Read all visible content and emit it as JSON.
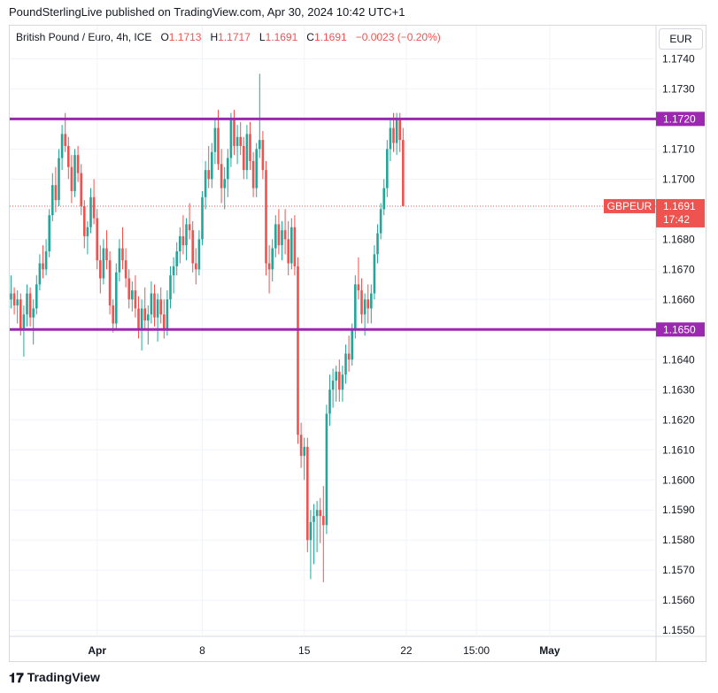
{
  "publisher": "PoundSterlingLive published on TradingView.com, Apr 30, 2024 10:42 UTC+1",
  "legend": {
    "symbol": "British Pound / Euro, 4h, ICE",
    "o_label": "O",
    "o_value": "1.1713",
    "h_label": "H",
    "h_value": "1.1717",
    "l_label": "L",
    "l_value": "1.1691",
    "c_label": "C",
    "c_value": "1.1691",
    "change": "−0.0023 (−0.20%)"
  },
  "currency_button": "EUR",
  "footer": {
    "brand": "TradingView",
    "logo_icon": "tradingview-logo-icon"
  },
  "colors": {
    "up": "#26a69a",
    "down": "#ef5350",
    "level_line": "#9c27b0",
    "price_tag": "#ef5350"
  },
  "chart_data": {
    "type": "candlestick",
    "title": "British Pound / Euro, 4h, ICE",
    "ylim": [
      1.1548,
      1.1751
    ],
    "y_ticks": [
      "1.1740",
      "1.1730",
      "1.1720",
      "1.1710",
      "1.1700",
      "1.1690",
      "1.1680",
      "1.1670",
      "1.1660",
      "1.1650",
      "1.1640",
      "1.1630",
      "1.1620",
      "1.1610",
      "1.1600",
      "1.1590",
      "1.1580",
      "1.1570",
      "1.1560",
      "1.1550"
    ],
    "x_labels": [
      {
        "label": "Apr",
        "bold": true,
        "index": 27
      },
      {
        "label": "8",
        "bold": false,
        "index": 60
      },
      {
        "label": "15",
        "bold": false,
        "index": 92
      },
      {
        "label": "22",
        "bold": false,
        "index": 124
      },
      {
        "label": "15:00",
        "bold": false,
        "index": 146
      },
      {
        "label": "May",
        "bold": true,
        "index": 169
      }
    ],
    "horizontal_levels": [
      {
        "value": 1.172,
        "label": "1.1720"
      },
      {
        "value": 1.165,
        "label": "1.1650"
      }
    ],
    "last_price": {
      "value": 1.1691,
      "symbol": "GBPEUR",
      "label": "1.1691",
      "countdown": "17:42"
    },
    "ohlc": [
      [
        1.166,
        1.1668,
        1.1657,
        1.1662
      ],
      [
        1.1662,
        1.1664,
        1.1655,
        1.1658
      ],
      [
        1.1658,
        1.1663,
        1.1652,
        1.166
      ],
      [
        1.166,
        1.1662,
        1.1648,
        1.165
      ],
      [
        1.165,
        1.1658,
        1.1641,
        1.1655
      ],
      [
        1.1655,
        1.1665,
        1.1651,
        1.1662
      ],
      [
        1.1662,
        1.1664,
        1.1651,
        1.1654
      ],
      [
        1.1654,
        1.166,
        1.1645,
        1.1657
      ],
      [
        1.1657,
        1.1668,
        1.1655,
        1.1665
      ],
      [
        1.1665,
        1.1675,
        1.1663,
        1.1672
      ],
      [
        1.1672,
        1.1678,
        1.1667,
        1.167
      ],
      [
        1.167,
        1.168,
        1.1668,
        1.1676
      ],
      [
        1.1676,
        1.169,
        1.1674,
        1.1688
      ],
      [
        1.1688,
        1.1702,
        1.1686,
        1.1698
      ],
      [
        1.1698,
        1.1704,
        1.1689,
        1.1693
      ],
      [
        1.1693,
        1.171,
        1.1691,
        1.1707
      ],
      [
        1.1707,
        1.1718,
        1.1703,
        1.1715
      ],
      [
        1.1715,
        1.1722,
        1.1709,
        1.1711
      ],
      [
        1.1711,
        1.1714,
        1.17,
        1.1704
      ],
      [
        1.1704,
        1.1708,
        1.1692,
        1.1696
      ],
      [
        1.1696,
        1.171,
        1.1694,
        1.1708
      ],
      [
        1.1708,
        1.1711,
        1.1699,
        1.1702
      ],
      [
        1.1702,
        1.1705,
        1.1688,
        1.1691
      ],
      [
        1.1691,
        1.1693,
        1.1677,
        1.1681
      ],
      [
        1.1681,
        1.1686,
        1.1675,
        1.1684
      ],
      [
        1.1684,
        1.1697,
        1.1682,
        1.1694
      ],
      [
        1.1694,
        1.17,
        1.1685,
        1.1687
      ],
      [
        1.1687,
        1.169,
        1.167,
        1.1673
      ],
      [
        1.1673,
        1.1678,
        1.1662,
        1.1667
      ],
      [
        1.1667,
        1.168,
        1.1665,
        1.1677
      ],
      [
        1.1677,
        1.1683,
        1.167,
        1.1673
      ],
      [
        1.1673,
        1.1676,
        1.1655,
        1.1658
      ],
      [
        1.1658,
        1.166,
        1.1649,
        1.1652
      ],
      [
        1.1652,
        1.1672,
        1.165,
        1.1669
      ],
      [
        1.1669,
        1.168,
        1.1666,
        1.1677
      ],
      [
        1.1677,
        1.1684,
        1.167,
        1.1673
      ],
      [
        1.1673,
        1.1677,
        1.1664,
        1.1667
      ],
      [
        1.1667,
        1.167,
        1.1657,
        1.166
      ],
      [
        1.166,
        1.1666,
        1.1656,
        1.1663
      ],
      [
        1.1663,
        1.1668,
        1.1654,
        1.1657
      ],
      [
        1.1657,
        1.1661,
        1.1647,
        1.165
      ],
      [
        1.165,
        1.166,
        1.1643,
        1.1657
      ],
      [
        1.1657,
        1.1664,
        1.165,
        1.1653
      ],
      [
        1.1653,
        1.1658,
        1.1645,
        1.1655
      ],
      [
        1.1655,
        1.1666,
        1.1652,
        1.1662
      ],
      [
        1.1662,
        1.1665,
        1.1651,
        1.1654
      ],
      [
        1.1654,
        1.1662,
        1.1646,
        1.166
      ],
      [
        1.166,
        1.1664,
        1.1652,
        1.1655
      ],
      [
        1.1655,
        1.166,
        1.1647,
        1.165
      ],
      [
        1.165,
        1.1663,
        1.1648,
        1.166
      ],
      [
        1.166,
        1.1671,
        1.1657,
        1.1668
      ],
      [
        1.1668,
        1.1674,
        1.1662,
        1.1671
      ],
      [
        1.1671,
        1.1679,
        1.1668,
        1.1676
      ],
      [
        1.1676,
        1.1684,
        1.1672,
        1.1681
      ],
      [
        1.1681,
        1.1688,
        1.1675,
        1.1678
      ],
      [
        1.1678,
        1.1687,
        1.1673,
        1.1685
      ],
      [
        1.1685,
        1.1692,
        1.168,
        1.1683
      ],
      [
        1.1683,
        1.1686,
        1.1669,
        1.1672
      ],
      [
        1.1672,
        1.1677,
        1.1665,
        1.167
      ],
      [
        1.167,
        1.1683,
        1.1668,
        1.168
      ],
      [
        1.168,
        1.1696,
        1.1678,
        1.1694
      ],
      [
        1.1694,
        1.1706,
        1.169,
        1.1703
      ],
      [
        1.1703,
        1.1711,
        1.1697,
        1.17
      ],
      [
        1.17,
        1.1712,
        1.1697,
        1.1709
      ],
      [
        1.1709,
        1.172,
        1.1705,
        1.1717
      ],
      [
        1.1717,
        1.1723,
        1.1703,
        1.1705
      ],
      [
        1.1705,
        1.171,
        1.1692,
        1.1697
      ],
      [
        1.1697,
        1.1704,
        1.169,
        1.17
      ],
      [
        1.17,
        1.171,
        1.1694,
        1.1707
      ],
      [
        1.1707,
        1.1722,
        1.1704,
        1.172
      ],
      [
        1.172,
        1.1723,
        1.1708,
        1.1711
      ],
      [
        1.1711,
        1.1718,
        1.1705,
        1.1714
      ],
      [
        1.1714,
        1.1719,
        1.1708,
        1.1711
      ],
      [
        1.1711,
        1.1714,
        1.17,
        1.1703
      ],
      [
        1.1703,
        1.1718,
        1.17,
        1.1715
      ],
      [
        1.1715,
        1.1719,
        1.1703,
        1.1706
      ],
      [
        1.1706,
        1.1709,
        1.1694,
        1.1697
      ],
      [
        1.1697,
        1.1712,
        1.1694,
        1.171
      ],
      [
        1.171,
        1.1735,
        1.1707,
        1.1713
      ],
      [
        1.1713,
        1.1716,
        1.17,
        1.1703
      ],
      [
        1.1703,
        1.1706,
        1.1668,
        1.1672
      ],
      [
        1.1672,
        1.1678,
        1.1662,
        1.167
      ],
      [
        1.167,
        1.168,
        1.1666,
        1.1677
      ],
      [
        1.1677,
        1.1688,
        1.1674,
        1.1685
      ],
      [
        1.1685,
        1.169,
        1.1675,
        1.1678
      ],
      [
        1.1678,
        1.1686,
        1.1673,
        1.1683
      ],
      [
        1.1683,
        1.169,
        1.1675,
        1.168
      ],
      [
        1.168,
        1.1686,
        1.1668,
        1.1672
      ],
      [
        1.1672,
        1.1687,
        1.167,
        1.1684
      ],
      [
        1.1684,
        1.1688,
        1.1668,
        1.1671
      ],
      [
        1.1671,
        1.1674,
        1.1612,
        1.1615
      ],
      [
        1.1615,
        1.1619,
        1.1604,
        1.1608
      ],
      [
        1.1608,
        1.1614,
        1.16,
        1.1611
      ],
      [
        1.1611,
        1.1614,
        1.1576,
        1.158
      ],
      [
        1.158,
        1.159,
        1.1567,
        1.1586
      ],
      [
        1.1586,
        1.1592,
        1.1572,
        1.1588
      ],
      [
        1.1588,
        1.1593,
        1.1576,
        1.159
      ],
      [
        1.159,
        1.1594,
        1.1579,
        1.1588
      ],
      [
        1.1588,
        1.1598,
        1.1566,
        1.1585
      ],
      [
        1.1585,
        1.1625,
        1.1582,
        1.1622
      ],
      [
        1.1622,
        1.1635,
        1.1618,
        1.163
      ],
      [
        1.163,
        1.1637,
        1.1624,
        1.1633
      ],
      [
        1.1633,
        1.1638,
        1.1626,
        1.1636
      ],
      [
        1.1636,
        1.164,
        1.1626,
        1.163
      ],
      [
        1.163,
        1.1638,
        1.1626,
        1.1635
      ],
      [
        1.1635,
        1.1645,
        1.1632,
        1.1642
      ],
      [
        1.1642,
        1.1648,
        1.1636,
        1.164
      ],
      [
        1.164,
        1.1652,
        1.1638,
        1.165
      ],
      [
        1.165,
        1.1668,
        1.1647,
        1.1665
      ],
      [
        1.1665,
        1.1674,
        1.166,
        1.1663
      ],
      [
        1.1663,
        1.1667,
        1.1652,
        1.1655
      ],
      [
        1.1655,
        1.1662,
        1.1648,
        1.166
      ],
      [
        1.166,
        1.1665,
        1.1652,
        1.1657
      ],
      [
        1.1657,
        1.1665,
        1.1652,
        1.1662
      ],
      [
        1.1662,
        1.1678,
        1.166,
        1.1675
      ],
      [
        1.1675,
        1.1685,
        1.1672,
        1.1682
      ],
      [
        1.1682,
        1.1692,
        1.168,
        1.169
      ],
      [
        1.169,
        1.17,
        1.1688,
        1.1697
      ],
      [
        1.1697,
        1.1713,
        1.1694,
        1.171
      ],
      [
        1.171,
        1.172,
        1.1706,
        1.1717
      ],
      [
        1.1717,
        1.1722,
        1.1709,
        1.1712
      ],
      [
        1.1712,
        1.1722,
        1.1708,
        1.172
      ],
      [
        1.172,
        1.1722,
        1.1709,
        1.1713
      ],
      [
        1.1713,
        1.1717,
        1.1691,
        1.1691
      ]
    ]
  }
}
